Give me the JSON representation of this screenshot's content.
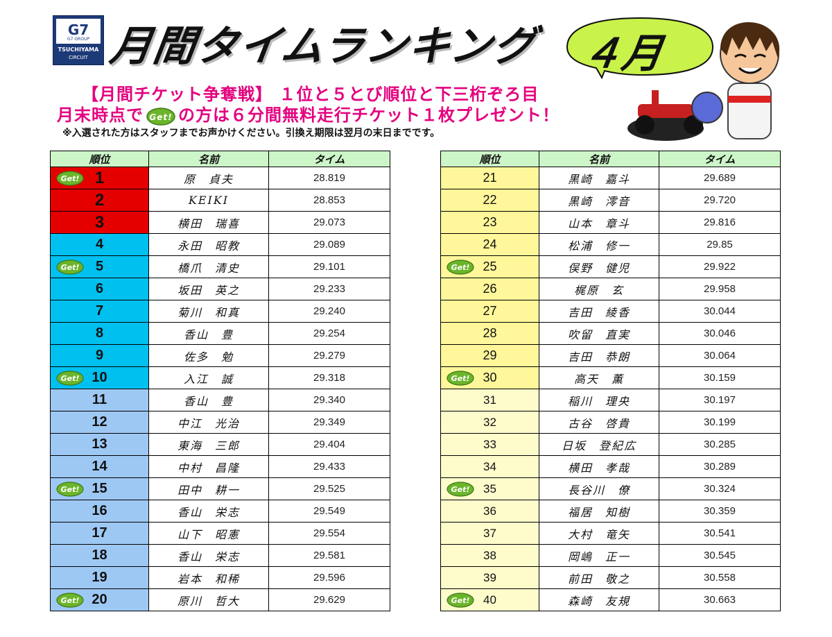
{
  "logo": {
    "brand": "G7",
    "brand_sub": "G7 GROUP",
    "name": "TSUCHIYAMA",
    "sub": "CIRCUIT"
  },
  "title": "月間タイムランキング",
  "month_badge": "４月",
  "announcement": {
    "line1": "【月間チケット争奪戦】 １位と５とび順位と下三桁ぞろ目",
    "line2_pre": "月末時点で",
    "line2_post": "の方は６分間無料走行チケット１枚プレゼント！",
    "note": "※入選された方はスタッフまでお声かけください。引換え期限は翌月の末日までです。"
  },
  "get_badge_text": "Get!",
  "headers": {
    "rank": "順位",
    "name": "名前",
    "time": "タイム"
  },
  "colors": {
    "top3": "#e50000",
    "ranks4to10": "#00c0f0",
    "ranks11to20": "#9ec8f4",
    "ranks21to30": "#fff79a",
    "ranks31to40": "#fffccc",
    "header": "#ccf5c8",
    "announcement": "#e4007f"
  },
  "left_table": [
    {
      "rank": "1",
      "name": "原　貞夫",
      "time": "28.819",
      "get": true
    },
    {
      "rank": "2",
      "name": "KEIKI",
      "time": "28.853",
      "get": false
    },
    {
      "rank": "3",
      "name": "横田　瑞喜",
      "time": "29.073",
      "get": false
    },
    {
      "rank": "4",
      "name": "永田　昭教",
      "time": "29.089",
      "get": false
    },
    {
      "rank": "5",
      "name": "橋爪　清史",
      "time": "29.101",
      "get": true
    },
    {
      "rank": "6",
      "name": "坂田　英之",
      "time": "29.233",
      "get": false
    },
    {
      "rank": "7",
      "name": "菊川　和真",
      "time": "29.240",
      "get": false
    },
    {
      "rank": "8",
      "name": "香山　豊",
      "time": "29.254",
      "get": false
    },
    {
      "rank": "9",
      "name": "佐多　勉",
      "time": "29.279",
      "get": false
    },
    {
      "rank": "10",
      "name": "入江　誠",
      "time": "29.318",
      "get": true
    },
    {
      "rank": "11",
      "name": "香山　豊",
      "time": "29.340",
      "get": false
    },
    {
      "rank": "12",
      "name": "中江　光治",
      "time": "29.349",
      "get": false
    },
    {
      "rank": "13",
      "name": "東海　三郎",
      "time": "29.404",
      "get": false
    },
    {
      "rank": "14",
      "name": "中村　昌隆",
      "time": "29.433",
      "get": false
    },
    {
      "rank": "15",
      "name": "田中　耕一",
      "time": "29.525",
      "get": true
    },
    {
      "rank": "16",
      "name": "香山　栄志",
      "time": "29.549",
      "get": false
    },
    {
      "rank": "17",
      "name": "山下　昭憲",
      "time": "29.554",
      "get": false
    },
    {
      "rank": "18",
      "name": "香山　栄志",
      "time": "29.581",
      "get": false
    },
    {
      "rank": "19",
      "name": "岩本　和稀",
      "time": "29.596",
      "get": false
    },
    {
      "rank": "20",
      "name": "原川　哲大",
      "time": "29.629",
      "get": true
    }
  ],
  "right_table": [
    {
      "rank": "21",
      "name": "黒崎　嘉斗",
      "time": "29.689",
      "get": false
    },
    {
      "rank": "22",
      "name": "黒崎　澪音",
      "time": "29.720",
      "get": false
    },
    {
      "rank": "23",
      "name": "山本　章斗",
      "time": "29.816",
      "get": false
    },
    {
      "rank": "24",
      "name": "松浦　修一",
      "time": "29.85",
      "get": false
    },
    {
      "rank": "25",
      "name": "俣野　健児",
      "time": "29.922",
      "get": true
    },
    {
      "rank": "26",
      "name": "梶原　玄",
      "time": "29.958",
      "get": false
    },
    {
      "rank": "27",
      "name": "吉田　綾香",
      "time": "30.044",
      "get": false
    },
    {
      "rank": "28",
      "name": "吹留　直実",
      "time": "30.046",
      "get": false
    },
    {
      "rank": "29",
      "name": "吉田　恭朗",
      "time": "30.064",
      "get": false
    },
    {
      "rank": "30",
      "name": "高天　薫",
      "time": "30.159",
      "get": true
    },
    {
      "rank": "31",
      "name": "稲川　理央",
      "time": "30.197",
      "get": false
    },
    {
      "rank": "32",
      "name": "古谷　啓貴",
      "time": "30.199",
      "get": false
    },
    {
      "rank": "33",
      "name": "日坂　登紀広",
      "time": "30.285",
      "get": false
    },
    {
      "rank": "34",
      "name": "横田　孝哉",
      "time": "30.289",
      "get": false
    },
    {
      "rank": "35",
      "name": "長谷川　僚",
      "time": "30.324",
      "get": true
    },
    {
      "rank": "36",
      "name": "福居　知樹",
      "time": "30.359",
      "get": false
    },
    {
      "rank": "37",
      "name": "大村　竜矢",
      "time": "30.541",
      "get": false
    },
    {
      "rank": "38",
      "name": "岡嶋　正一",
      "time": "30.545",
      "get": false
    },
    {
      "rank": "39",
      "name": "前田　敬之",
      "time": "30.558",
      "get": false
    },
    {
      "rank": "40",
      "name": "森崎　友規",
      "time": "30.663",
      "get": true
    }
  ]
}
